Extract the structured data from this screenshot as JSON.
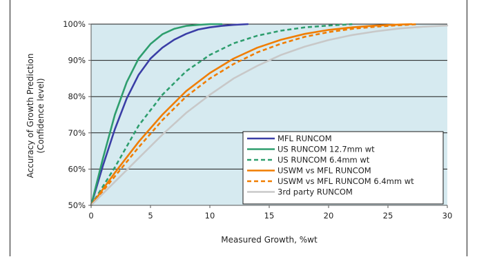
{
  "chart_data": {
    "type": "line",
    "title": "",
    "xlabel": "Measured Growth, %wt",
    "ylabel_lines": [
      "Accuracy of Growth Prediction",
      "(Confidence level)"
    ],
    "xlim": [
      0,
      30
    ],
    "ylim": [
      50,
      100
    ],
    "x_ticks": [
      "0",
      "5",
      "10",
      "15",
      "20",
      "25",
      "30"
    ],
    "y_ticks": [
      "50%",
      "60%",
      "70%",
      "80%",
      "90%",
      "100%"
    ],
    "x_tick_values": [
      0,
      5,
      10,
      15,
      20,
      25,
      30
    ],
    "y_tick_values": [
      50,
      60,
      70,
      80,
      90,
      100
    ],
    "grid": "horizontal",
    "plot_background": "#d6eaf0",
    "legend_position": "bottom-right",
    "series": [
      {
        "name": "MFL RUNCOM",
        "color": "#3a3ea6",
        "dash": "solid",
        "x": [
          0,
          1,
          2,
          3,
          4,
          5,
          6,
          7,
          8,
          9,
          10,
          11,
          12,
          13.2
        ],
        "y": [
          50,
          61,
          71,
          79.5,
          86,
          90.5,
          93.5,
          95.7,
          97.3,
          98.5,
          99.1,
          99.5,
          99.8,
          100
        ]
      },
      {
        "name": "US RUNCOM 12.7mm wt",
        "color": "#2e9e6e",
        "dash": "solid",
        "x": [
          0,
          1,
          2,
          3,
          4,
          5,
          6,
          7,
          8,
          9,
          10,
          11
        ],
        "y": [
          50,
          63,
          75,
          84,
          90.5,
          94.5,
          97.2,
          98.7,
          99.5,
          99.8,
          100,
          100
        ]
      },
      {
        "name": "US RUNCOM 6.4mm wt",
        "color": "#2e9e6e",
        "dash": "dash",
        "x": [
          0,
          2,
          4,
          6,
          8,
          10,
          12,
          14,
          16,
          18,
          20,
          22
        ],
        "y": [
          50,
          60.5,
          72,
          80.5,
          87,
          91.5,
          94.7,
          96.8,
          98.2,
          99.1,
          99.6,
          100
        ]
      },
      {
        "name": "USWM vs MFL RUNCOM",
        "color": "#f07d00",
        "dash": "solid",
        "x": [
          0,
          2,
          4,
          6,
          8,
          10,
          12,
          14,
          16,
          18,
          20,
          22,
          24,
          26,
          27
        ],
        "y": [
          50,
          59,
          67.5,
          75,
          81.5,
          86.5,
          90.5,
          93.5,
          95.7,
          97.3,
          98.4,
          99.1,
          99.6,
          99.9,
          100
        ]
      },
      {
        "name": "USWM vs MFL RUNCOM 6.4mm wt",
        "color": "#f07d00",
        "dash": "dash",
        "x": [
          0,
          2,
          4,
          6,
          8,
          10,
          12,
          14,
          16,
          18,
          20,
          22,
          24,
          26,
          27.5
        ],
        "y": [
          50,
          58,
          66,
          73.5,
          80,
          85,
          89,
          92.2,
          94.6,
          96.5,
          97.8,
          98.7,
          99.3,
          99.7,
          100
        ]
      },
      {
        "name": "3rd party RUNCOM",
        "color": "#c8c8c8",
        "dash": "solid",
        "x": [
          0,
          2,
          4,
          6,
          8,
          10,
          12,
          14,
          16,
          18,
          20,
          22,
          24,
          26,
          28,
          30
        ],
        "y": [
          50,
          56.5,
          63,
          69.5,
          75.5,
          80.5,
          85,
          88.5,
          91.5,
          93.8,
          95.6,
          97,
          98,
          98.8,
          99.3,
          99.6
        ]
      }
    ]
  }
}
